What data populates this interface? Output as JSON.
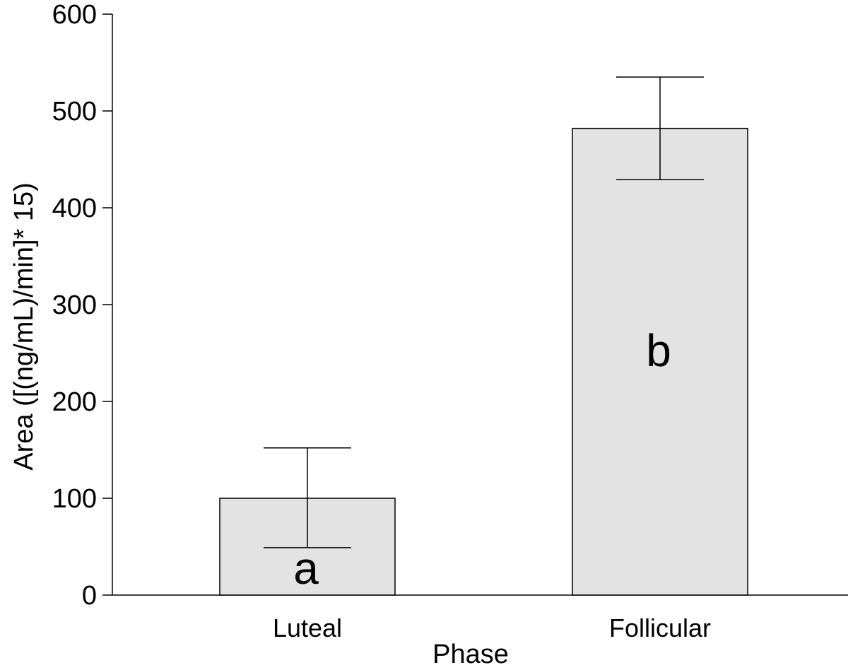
{
  "chart_data": {
    "type": "bar",
    "title": "",
    "xlabel": "Phase",
    "ylabel": "Area ([(ng/mL)/min]* 15)",
    "categories": [
      "Luteal",
      "Follicular"
    ],
    "values": [
      100,
      482
    ],
    "error_upper": [
      152,
      535
    ],
    "error_lower": [
      49,
      429
    ],
    "significance_letters": [
      "a",
      "b"
    ],
    "ylim": [
      0,
      600
    ],
    "yticks": [
      "0",
      "100",
      "200",
      "300",
      "400",
      "500",
      "600"
    ],
    "grid": false,
    "legend": "none",
    "bar_color": "#e3e3e3",
    "edge_color": "#000000"
  }
}
